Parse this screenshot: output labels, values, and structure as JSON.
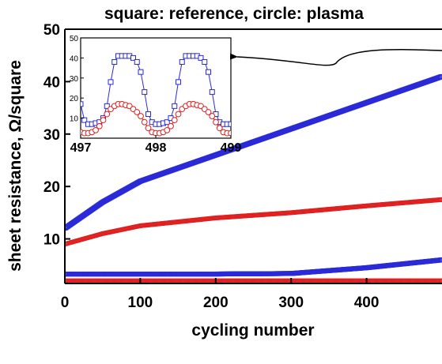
{
  "chart_data": {
    "type": "scatter",
    "title": "square: reference, circle: plasma",
    "xlabel": "cycling number",
    "ylabel": "sheet resistance, Ω/square",
    "xlim": [
      0,
      500
    ],
    "ylim": [
      1.5,
      50
    ],
    "xticks": [
      0,
      100,
      200,
      300,
      400
    ],
    "yticks": [
      10,
      20,
      30,
      40,
      50
    ],
    "grid": false,
    "colors": {
      "reference": "#2a2ad8",
      "plasma": "#e02020",
      "annotation_arrow": "#000000"
    },
    "series": [
      {
        "marker": "square",
        "color": "#2a2ad8",
        "envelope": {
          "x": [
            0,
            50,
            100,
            200,
            300,
            400,
            500
          ],
          "max": [
            12,
            17,
            21,
            26,
            31,
            36,
            41
          ],
          "min": [
            3.3,
            3.3,
            3.3,
            3.3,
            3.4,
            4.5,
            6
          ]
        }
      },
      {
        "marker": "circle",
        "color": "#e02020",
        "envelope": {
          "x": [
            0,
            50,
            100,
            200,
            300,
            400,
            500
          ],
          "max": [
            9,
            11,
            12.5,
            14,
            15,
            16.3,
            17.5
          ],
          "min": [
            2,
            2,
            2,
            2,
            2,
            2,
            2
          ]
        }
      }
    ],
    "inset": {
      "xlim": [
        497,
        499
      ],
      "ylim": [
        0,
        50
      ],
      "xticks": [
        497,
        498,
        499
      ],
      "yticks": [
        10,
        20,
        30,
        40,
        50
      ],
      "series": [
        {
          "marker": "square",
          "color": "#2a2ad8",
          "x": [
            497.0,
            497.05,
            497.1,
            497.15,
            497.2,
            497.25,
            497.3,
            497.35,
            497.4,
            497.45,
            497.5,
            497.55,
            497.6,
            497.65,
            497.7,
            497.75,
            497.8,
            497.85,
            497.9,
            497.95,
            498.0,
            498.05,
            498.1,
            498.15,
            498.2,
            498.25,
            498.3,
            498.35,
            498.4,
            498.45,
            498.5,
            498.55,
            498.6,
            498.65,
            498.7,
            498.75,
            498.8,
            498.85,
            498.9,
            498.95,
            499.0
          ],
          "y": [
            17,
            9,
            7,
            7,
            7.5,
            8,
            10,
            16,
            28,
            38,
            41,
            41,
            41,
            41,
            40,
            38,
            33,
            23,
            12,
            8,
            7,
            7,
            7.5,
            8,
            10,
            16,
            28,
            38,
            41,
            41,
            41,
            41,
            40,
            38,
            33,
            23,
            12,
            8,
            7,
            7,
            7
          ]
        },
        {
          "marker": "circle",
          "color": "#e02020",
          "x": [
            497.0,
            497.05,
            497.1,
            497.15,
            497.2,
            497.25,
            497.3,
            497.35,
            497.4,
            497.45,
            497.5,
            497.55,
            497.6,
            497.65,
            497.7,
            497.75,
            497.8,
            497.85,
            497.9,
            497.95,
            498.0,
            498.05,
            498.1,
            498.15,
            498.2,
            498.25,
            498.3,
            498.35,
            498.4,
            498.45,
            498.5,
            498.55,
            498.6,
            498.65,
            498.7,
            498.75,
            498.8,
            498.85,
            498.9,
            498.95,
            499.0
          ],
          "y": [
            3,
            2.5,
            2.5,
            3,
            4,
            6,
            9,
            12,
            14.5,
            16,
            17,
            17,
            16.5,
            16,
            14.5,
            13,
            11,
            8,
            5,
            3,
            2.5,
            2.5,
            3,
            4,
            6,
            9,
            12,
            14.5,
            16,
            17,
            17,
            16.5,
            16,
            14.5,
            13,
            11,
            8,
            5,
            3,
            2.5,
            2.5
          ]
        }
      ]
    }
  }
}
